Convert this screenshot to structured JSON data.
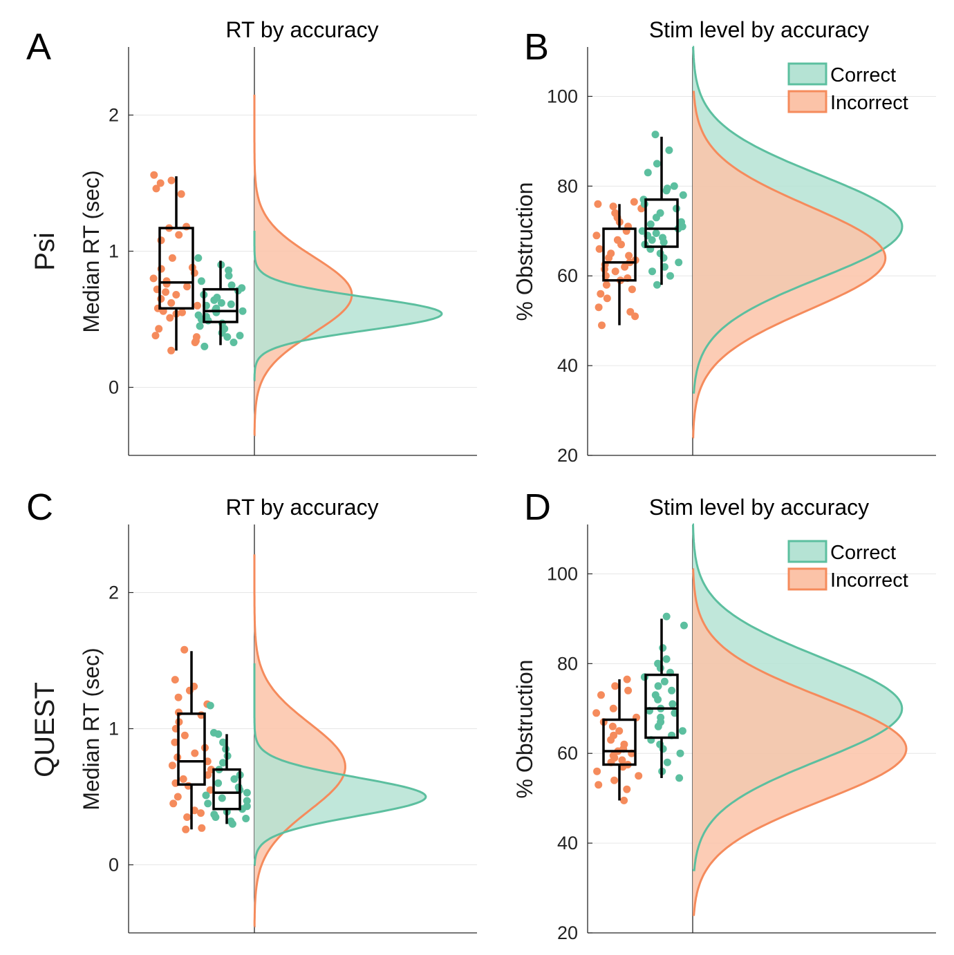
{
  "colors": {
    "correct": "#5cbf9f",
    "correct_fill": "#b5e3d4",
    "incorrect": "#f58b5c",
    "incorrect_fill": "#fbc3a8",
    "overlap": "#d4b398",
    "grid": "#e6e6e6",
    "axis": "#262626"
  },
  "row_labels": [
    "Psi",
    "QUEST"
  ],
  "chart_data": [
    {
      "panel": "A",
      "type": "raincloud",
      "title": "RT by accuracy",
      "ylabel": "Median RT (sec)",
      "ylim": [
        -0.5,
        2.5
      ],
      "yticks": [
        0,
        1,
        2
      ],
      "grid": true,
      "distributions": [
        {
          "name": "Incorrect",
          "color": "incorrect",
          "mean": 0.68,
          "sd": 0.28,
          "peak": 0.52,
          "range": [
            -0.35,
            2.15
          ]
        },
        {
          "name": "Correct",
          "color": "correct",
          "mean": 0.54,
          "sd": 0.12,
          "peak": 1.0,
          "range": [
            0.05,
            1.15
          ]
        }
      ],
      "boxes": [
        {
          "name": "Incorrect",
          "color": "incorrect",
          "whisker_low": 0.27,
          "q1": 0.58,
          "median": 0.77,
          "q3": 1.17,
          "whisker_high": 1.55,
          "points": [
            0.33,
            0.37,
            0.38,
            0.27,
            0.34,
            0.43,
            0.51,
            0.54,
            0.55,
            0.56,
            0.58,
            0.6,
            0.62,
            0.65,
            0.68,
            0.7,
            0.72,
            0.74,
            0.76,
            0.78,
            0.8,
            0.84,
            0.87,
            0.88,
            0.95,
            1.08,
            1.12,
            1.17,
            1.18,
            1.42,
            1.46,
            1.5,
            1.52,
            1.56
          ]
        },
        {
          "name": "Correct",
          "color": "correct",
          "whisker_low": 0.31,
          "q1": 0.48,
          "median": 0.56,
          "q3": 0.72,
          "whisker_high": 0.93,
          "points": [
            0.3,
            0.33,
            0.37,
            0.38,
            0.4,
            0.43,
            0.45,
            0.47,
            0.49,
            0.5,
            0.52,
            0.53,
            0.55,
            0.56,
            0.57,
            0.58,
            0.6,
            0.61,
            0.62,
            0.64,
            0.66,
            0.68,
            0.71,
            0.73,
            0.75,
            0.78,
            0.82,
            0.86,
            0.9,
            0.95
          ]
        }
      ]
    },
    {
      "panel": "B",
      "type": "raincloud",
      "title": "Stim level by accuracy",
      "ylabel": "% Obstruction",
      "ylim": [
        20,
        111
      ],
      "yticks": [
        20,
        40,
        60,
        80,
        100
      ],
      "grid": true,
      "legend": {
        "placement": "top-right",
        "entries": [
          {
            "label": "Correct",
            "color": "correct"
          },
          {
            "label": "Incorrect",
            "color": "incorrect"
          }
        ]
      },
      "distributions": [
        {
          "name": "Correct",
          "color": "correct",
          "mean": 71,
          "sd": 11.5,
          "peak": 1.0,
          "range": [
            34,
            111
          ]
        },
        {
          "name": "Incorrect",
          "color": "incorrect",
          "mean": 64,
          "sd": 11.5,
          "peak": 0.92,
          "range": [
            24,
            101
          ]
        }
      ],
      "boxes": [
        {
          "name": "Incorrect",
          "color": "incorrect",
          "whisker_low": 49,
          "q1": 59,
          "median": 63,
          "q3": 70.5,
          "whisker_high": 76,
          "points": [
            49,
            51,
            52,
            53,
            55,
            56,
            57,
            58,
            59,
            59.5,
            60,
            61,
            61.5,
            62,
            62.5,
            63,
            63.5,
            64,
            64.5,
            65,
            66,
            67,
            68,
            69,
            70,
            71,
            72,
            73,
            74,
            75,
            75.5,
            76,
            76.5
          ]
        },
        {
          "name": "Correct",
          "color": "correct",
          "whisker_low": 58,
          "q1": 66.5,
          "median": 70.5,
          "q3": 77,
          "whisker_high": 91,
          "points": [
            58,
            60,
            61,
            62,
            63,
            64,
            65,
            66,
            67,
            67.5,
            68,
            68.5,
            69,
            69.5,
            70,
            70.5,
            71,
            71.5,
            72,
            73,
            74,
            75,
            76,
            77,
            78,
            79,
            79.5,
            80,
            83,
            85,
            88,
            91.5
          ]
        }
      ]
    },
    {
      "panel": "C",
      "type": "raincloud",
      "title": "RT by accuracy",
      "ylabel": "Median RT (sec)",
      "ylim": [
        -0.5,
        2.5
      ],
      "yticks": [
        0,
        1,
        2
      ],
      "grid": true,
      "distributions": [
        {
          "name": "Incorrect",
          "color": "incorrect",
          "mean": 0.72,
          "sd": 0.32,
          "peak": 0.53,
          "range": [
            -0.45,
            2.28
          ]
        },
        {
          "name": "Correct",
          "color": "correct",
          "mean": 0.5,
          "sd": 0.14,
          "peak": 1.0,
          "range": [
            0.0,
            1.48
          ]
        }
      ],
      "boxes": [
        {
          "name": "Incorrect",
          "color": "incorrect",
          "whisker_low": 0.26,
          "q1": 0.59,
          "median": 0.76,
          "q3": 1.11,
          "whisker_high": 1.57,
          "points": [
            0.26,
            0.27,
            0.35,
            0.38,
            0.4,
            0.45,
            0.5,
            0.55,
            0.58,
            0.6,
            0.63,
            0.66,
            0.7,
            0.73,
            0.76,
            0.79,
            0.82,
            0.86,
            0.9,
            0.95,
            1.0,
            1.05,
            1.1,
            1.12,
            1.18,
            1.23,
            1.28,
            1.31,
            1.36,
            1.58
          ]
        },
        {
          "name": "Correct",
          "color": "correct",
          "whisker_low": 0.3,
          "q1": 0.41,
          "median": 0.53,
          "q3": 0.7,
          "whisker_high": 0.96,
          "points": [
            0.3,
            0.32,
            0.34,
            0.35,
            0.37,
            0.39,
            0.41,
            0.43,
            0.45,
            0.47,
            0.49,
            0.51,
            0.53,
            0.55,
            0.57,
            0.6,
            0.63,
            0.66,
            0.7,
            0.75,
            0.8,
            0.85,
            0.9,
            0.96,
            0.97,
            1.17
          ]
        }
      ]
    },
    {
      "panel": "D",
      "type": "raincloud",
      "title": "Stim level by accuracy",
      "ylabel": "% Obstruction",
      "ylim": [
        20,
        111
      ],
      "yticks": [
        20,
        40,
        60,
        80,
        100
      ],
      "grid": true,
      "legend": {
        "placement": "top-right",
        "entries": [
          {
            "label": "Correct",
            "color": "correct"
          },
          {
            "label": "Incorrect",
            "color": "incorrect"
          }
        ]
      },
      "distributions": [
        {
          "name": "Correct",
          "color": "correct",
          "mean": 70,
          "sd": 11.5,
          "peak": 0.98,
          "range": [
            34,
            111
          ]
        },
        {
          "name": "Incorrect",
          "color": "incorrect",
          "mean": 61,
          "sd": 11.5,
          "peak": 1.0,
          "range": [
            24,
            101
          ]
        }
      ],
      "boxes": [
        {
          "name": "Incorrect",
          "color": "incorrect",
          "whisker_low": 49.5,
          "q1": 57.5,
          "median": 60.5,
          "q3": 67.5,
          "whisker_high": 76.5,
          "points": [
            49.5,
            52,
            53,
            54,
            55,
            56,
            57,
            57.5,
            58,
            58.5,
            59,
            59.5,
            60,
            60.5,
            61,
            62,
            63,
            64,
            65,
            66,
            67,
            68,
            69,
            70,
            73,
            74,
            75,
            76.5
          ]
        },
        {
          "name": "Correct",
          "color": "correct",
          "whisker_low": 54.5,
          "q1": 63.5,
          "median": 70,
          "q3": 77.5,
          "whisker_high": 90,
          "points": [
            54.5,
            56,
            58,
            60,
            61,
            62,
            63,
            64,
            65,
            66,
            67,
            68,
            69,
            69.5,
            70,
            71,
            72,
            73,
            74,
            75,
            76,
            77,
            78,
            79,
            80,
            81,
            83.5,
            88.5,
            90.5
          ]
        }
      ]
    }
  ]
}
